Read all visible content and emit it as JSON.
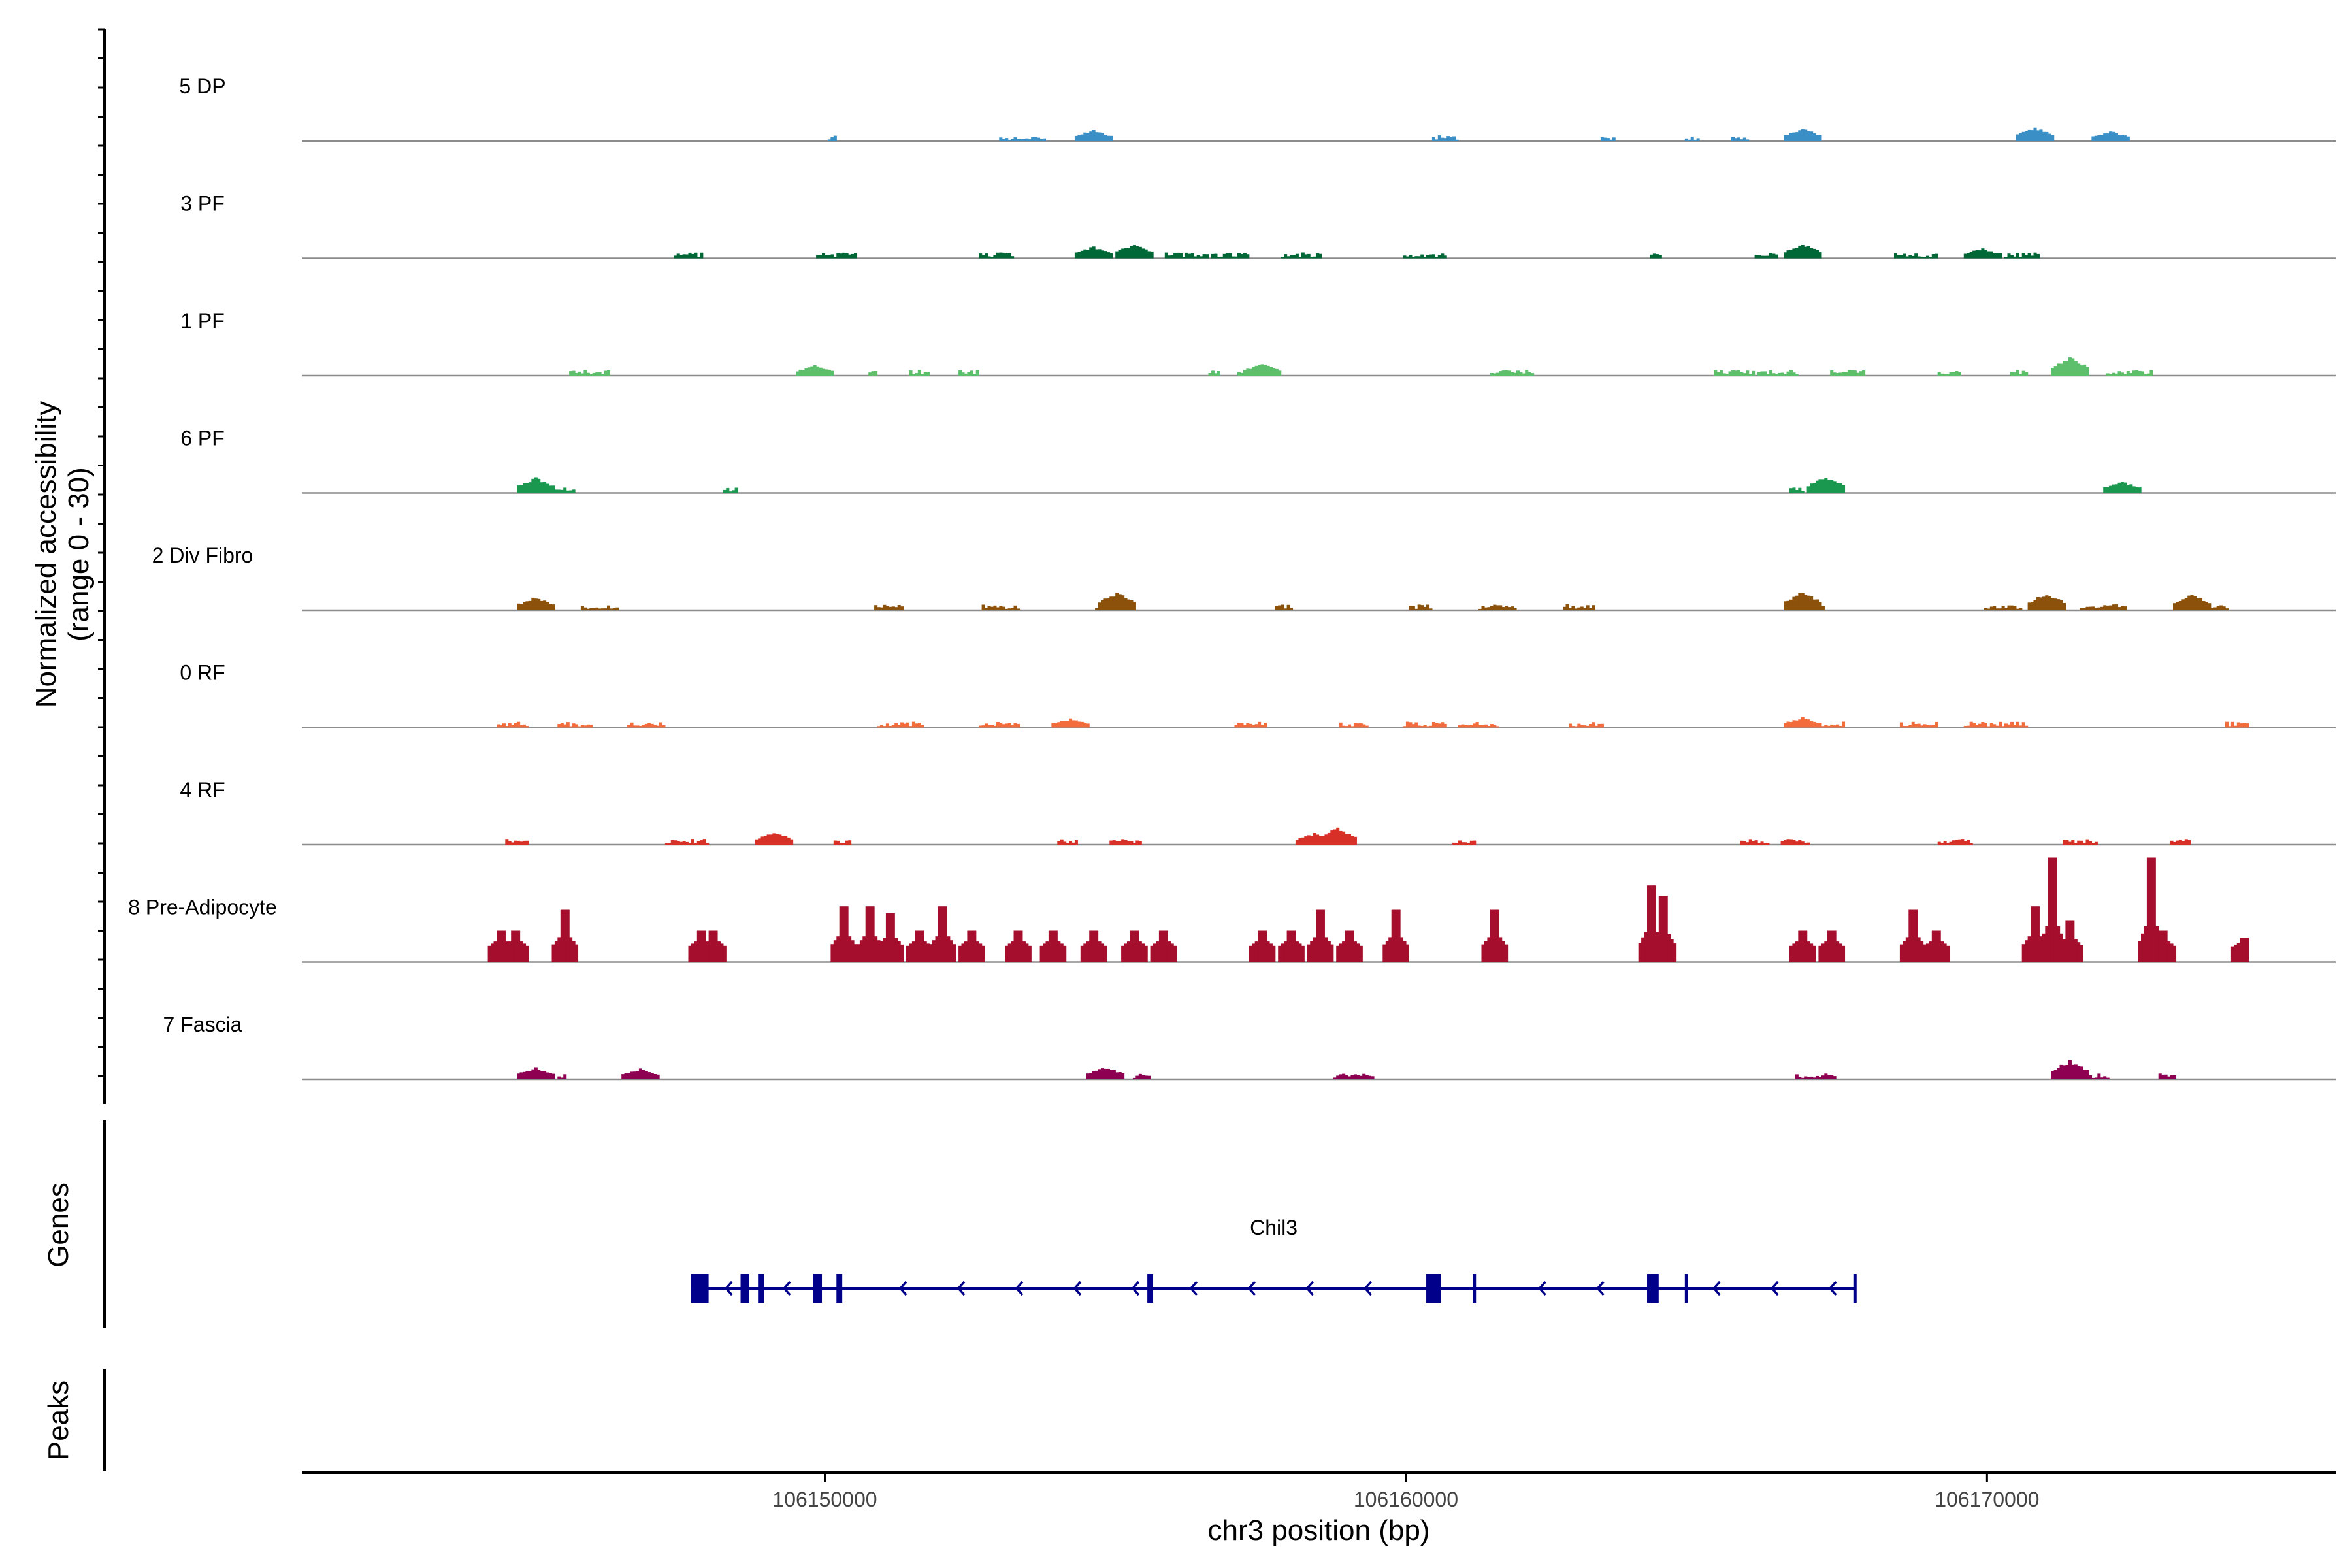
{
  "chart_data": {
    "type": "area",
    "y_axis_label": "Normalized accessibility",
    "y_axis_range_label": "(range 0 - 30)",
    "ylim": [
      0,
      30
    ],
    "x_axis_label": "chr3 position (bp)",
    "xlim": [
      106141000,
      106176000
    ],
    "x_ticks": [
      106150000,
      106160000,
      106170000
    ],
    "x_tick_labels": [
      "106150000",
      "106160000",
      "106170000"
    ],
    "genes_panel_label": "Genes",
    "peaks_panel_label": "Peaks",
    "gene": {
      "name": "Chil3",
      "strand": "-",
      "start": 106147700,
      "end": 106167750,
      "color": "#00008B",
      "exons": [
        [
          106147700,
          106148000
        ],
        [
          106148550,
          106148700
        ],
        [
          106148850,
          106148950
        ],
        [
          106149800,
          106149950
        ],
        [
          106150200,
          106150300
        ],
        [
          106155550,
          106155650
        ],
        [
          106160350,
          106160600
        ],
        [
          106161150,
          106161200
        ],
        [
          106164150,
          106164350
        ],
        [
          106164800,
          106164830
        ],
        [
          106167700,
          106167750
        ]
      ]
    },
    "series": [
      {
        "name": "5 DP",
        "color": "#3A8FC6",
        "max": 3,
        "density": 0.45,
        "seed": 11,
        "peaks": [
          [
            106154600,
            1.8
          ],
          [
            106166800,
            2.0
          ],
          [
            106170800,
            2.2
          ],
          [
            106172100,
            1.6
          ]
        ]
      },
      {
        "name": "3 PF",
        "color": "#006837",
        "max": 3,
        "density": 0.55,
        "seed": 23,
        "peaks": [
          [
            106155300,
            2.4
          ],
          [
            106154600,
            1.9
          ],
          [
            106166800,
            2.3
          ],
          [
            106169900,
            1.6
          ]
        ]
      },
      {
        "name": "1 PF",
        "color": "#5DBE6B",
        "max": 3,
        "density": 0.65,
        "seed": 37,
        "peaks": [
          [
            106149800,
            1.6
          ],
          [
            106171400,
            3.0
          ],
          [
            106157500,
            1.9
          ]
        ]
      },
      {
        "name": "6 PF",
        "color": "#1A9850",
        "max": 3,
        "density": 0.35,
        "seed": 41,
        "peaks": [
          [
            106145000,
            2.4
          ],
          [
            106167200,
            2.6
          ],
          [
            106172300,
            1.8
          ]
        ]
      },
      {
        "name": "2 Div Fibro",
        "color": "#8C510A",
        "max": 3,
        "density": 0.6,
        "seed": 53,
        "peaks": [
          [
            106155000,
            2.8
          ],
          [
            106171000,
            2.7
          ],
          [
            106166800,
            2.9
          ],
          [
            106173500,
            2.6
          ],
          [
            106145000,
            2.1
          ]
        ]
      },
      {
        "name": "0 RF",
        "color": "#F26C3C",
        "max": 3,
        "density": 0.65,
        "seed": 67,
        "peaks": [
          [
            106166800,
            1.6
          ],
          [
            106154200,
            1.4
          ]
        ]
      },
      {
        "name": "4 RF",
        "color": "#D73027",
        "max": 3,
        "density": 0.6,
        "seed": 71,
        "peaks": [
          [
            106158800,
            2.7
          ],
          [
            106149100,
            2.0
          ],
          [
            106158400,
            1.8
          ]
        ]
      },
      {
        "name": "8 Pre-Adipocyte",
        "color": "#A50F2D",
        "max": 30,
        "density": 0.0,
        "seed": 83,
        "peaks": [
          [
            106144400,
            9
          ],
          [
            106144650,
            9
          ],
          [
            106145500,
            15
          ],
          [
            106147850,
            9
          ],
          [
            106148050,
            9
          ],
          [
            106150300,
            16
          ],
          [
            106150750,
            16
          ],
          [
            106151100,
            14
          ],
          [
            106151600,
            9
          ],
          [
            106152000,
            16
          ],
          [
            106152500,
            9
          ],
          [
            106153300,
            9
          ],
          [
            106153900,
            9
          ],
          [
            106154600,
            9
          ],
          [
            106155300,
            9
          ],
          [
            106155800,
            9
          ],
          [
            106157500,
            9
          ],
          [
            106158000,
            9
          ],
          [
            106158500,
            15
          ],
          [
            106159000,
            9
          ],
          [
            106159800,
            15
          ],
          [
            106161500,
            15
          ],
          [
            106164200,
            22
          ],
          [
            106164400,
            19
          ],
          [
            106166800,
            9
          ],
          [
            106167300,
            9
          ],
          [
            106168700,
            15
          ],
          [
            106169100,
            9
          ],
          [
            106170800,
            16
          ],
          [
            106171100,
            30
          ],
          [
            106171400,
            12
          ],
          [
            106172800,
            30
          ],
          [
            106173000,
            9
          ],
          [
            106174400,
            7
          ]
        ]
      },
      {
        "name": "7 Fascia",
        "color": "#8E0152",
        "max": 3,
        "density": 0.45,
        "seed": 97,
        "peaks": [
          [
            106171400,
            3.0
          ],
          [
            106154800,
            2.0
          ],
          [
            106145000,
            1.9
          ],
          [
            106146800,
            1.7
          ]
        ]
      }
    ]
  }
}
